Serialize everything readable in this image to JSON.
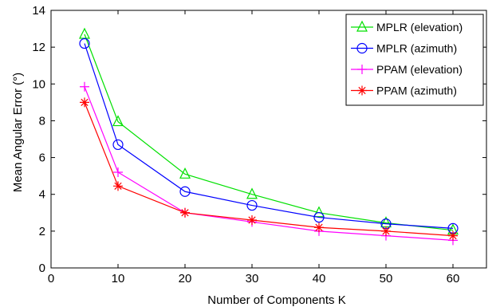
{
  "chart_data": {
    "type": "line",
    "xlabel": "Number of Components K",
    "ylabel": "Mean Angular Error (°)",
    "xlim": [
      0,
      65
    ],
    "ylim": [
      0,
      14
    ],
    "xticks": [
      0,
      10,
      20,
      30,
      40,
      50,
      60
    ],
    "yticks": [
      0,
      2,
      4,
      6,
      8,
      10,
      12,
      14
    ],
    "x": [
      5,
      10,
      20,
      30,
      40,
      50,
      60
    ],
    "grid": false,
    "legend_position": "top-right",
    "series": [
      {
        "name": "MPLR (elevation)",
        "color": "#00e000",
        "marker": "triangle",
        "values": [
          12.7,
          7.95,
          5.1,
          4.0,
          3.0,
          2.45,
          2.05
        ]
      },
      {
        "name": "MPLR (azimuth)",
        "color": "#0000ff",
        "marker": "circle",
        "values": [
          12.2,
          6.7,
          4.15,
          3.4,
          2.75,
          2.4,
          2.15
        ]
      },
      {
        "name": "PPAM (elevation)",
        "color": "#ff00ff",
        "marker": "plus",
        "values": [
          9.85,
          5.2,
          3.0,
          2.5,
          2.0,
          1.75,
          1.5
        ]
      },
      {
        "name": "PPAM (azimuth)",
        "color": "#ff0000",
        "marker": "asterisk",
        "values": [
          9.0,
          4.45,
          3.0,
          2.6,
          2.2,
          2.0,
          1.75
        ]
      }
    ]
  }
}
